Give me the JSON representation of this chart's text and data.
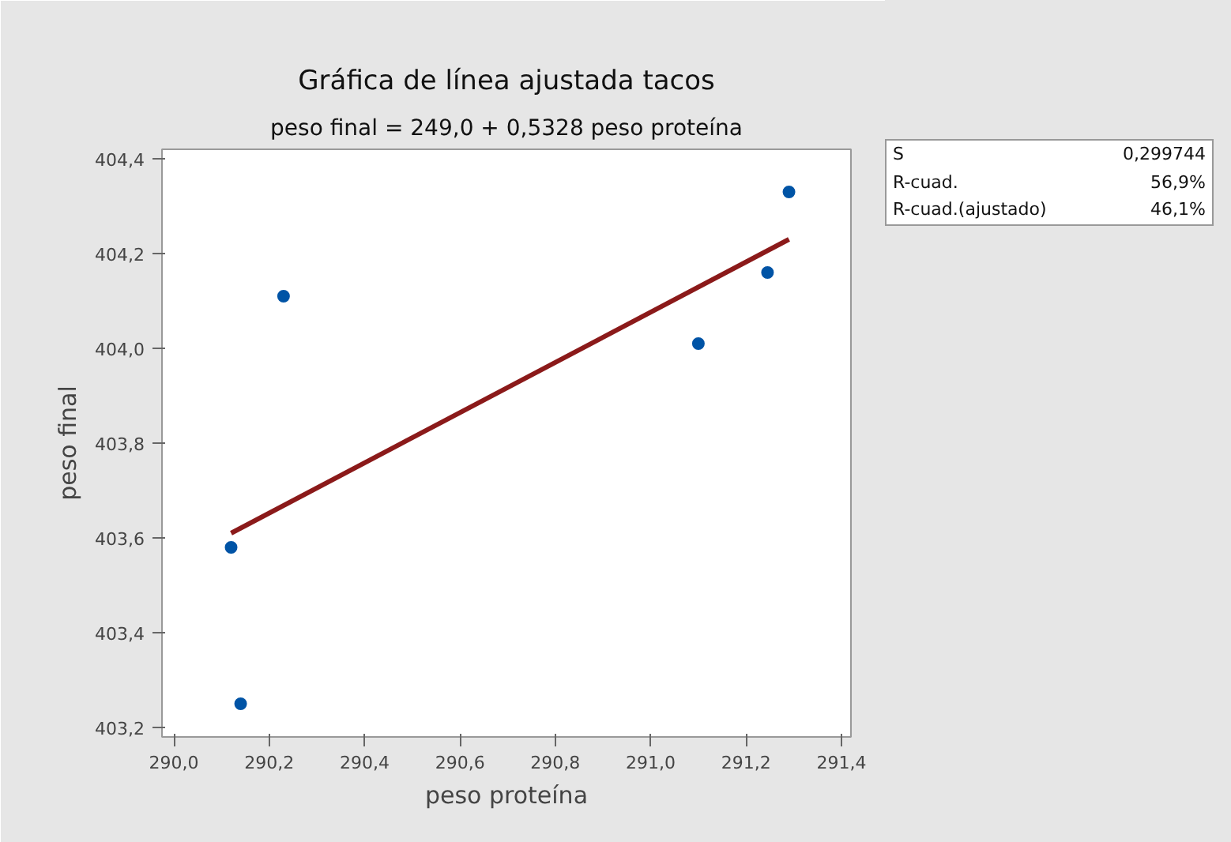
{
  "chart_data": {
    "type": "scatter",
    "title": "Gráfica de línea ajustada tacos",
    "subtitle": "peso final = 249,0 + 0,5328 peso proteína",
    "xlabel": "peso proteína",
    "ylabel": "peso final",
    "xlim": [
      289.975,
      291.42
    ],
    "ylim": [
      403.18,
      404.42
    ],
    "xticks": [
      {
        "value": 290.0,
        "label": "290,0"
      },
      {
        "value": 290.2,
        "label": "290,2"
      },
      {
        "value": 290.4,
        "label": "290,4"
      },
      {
        "value": 290.6,
        "label": "290,6"
      },
      {
        "value": 290.8,
        "label": "290,8"
      },
      {
        "value": 291.0,
        "label": "291,0"
      },
      {
        "value": 291.2,
        "label": "291,2"
      },
      {
        "value": 291.4,
        "label": "291,4"
      }
    ],
    "yticks": [
      {
        "value": 403.2,
        "label": "403,2"
      },
      {
        "value": 403.4,
        "label": "403,4"
      },
      {
        "value": 403.6,
        "label": "403,6"
      },
      {
        "value": 403.8,
        "label": "403,8"
      },
      {
        "value": 404.0,
        "label": "404,0"
      },
      {
        "value": 404.2,
        "label": "404,2"
      },
      {
        "value": 404.4,
        "label": "404,4"
      }
    ],
    "series": [
      {
        "marker": "circle",
        "color": "#0054a6",
        "x": [
          290.12,
          290.14,
          290.23,
          291.1,
          291.245,
          291.29
        ],
        "values": [
          403.58,
          403.25,
          404.11,
          404.01,
          404.16,
          404.33
        ]
      },
      {
        "type": "line",
        "marker": "none",
        "color": "#8b1a1a",
        "x": [
          290.12,
          291.29
        ],
        "values": [
          403.61,
          404.23
        ]
      }
    ],
    "annotations": [
      "S",
      "0,299744",
      "R-cuad.",
      "56,9%",
      "R-cuad.(ajustado)",
      "46,1%"
    ],
    "line_style": "solid",
    "grid": false
  }
}
